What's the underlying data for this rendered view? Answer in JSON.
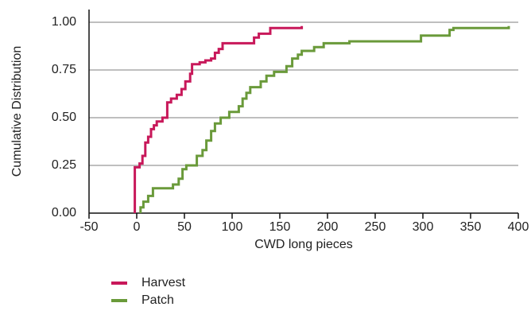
{
  "chart_data": {
    "type": "step",
    "xlabel": "CWD long pieces",
    "ylabel": "Cumulative Distribution",
    "xlim": [
      -50,
      400
    ],
    "xticks": [
      -50,
      0,
      50,
      100,
      150,
      200,
      250,
      300,
      350,
      400
    ],
    "ylim": [
      0,
      1
    ],
    "yticks": [
      {
        "value": 0,
        "label": "0.00"
      },
      {
        "value": 0.25,
        "label": "0.25"
      },
      {
        "value": 0.5,
        "label": "0.50"
      },
      {
        "value": 0.75,
        "label": "0.75"
      },
      {
        "value": 1,
        "label": "1.00"
      }
    ],
    "grid": true,
    "legend": "bottom-left",
    "series": [
      {
        "name": "Harvest",
        "color": "#c8185a",
        "x": [
          -2,
          -2,
          3,
          6,
          9,
          12,
          15,
          18,
          21,
          27,
          32,
          36,
          42,
          47,
          51,
          56,
          58,
          66,
          72,
          78,
          82,
          86,
          90,
          100,
          123,
          128,
          140,
          173
        ],
        "values": [
          0,
          0.24,
          0.26,
          0.3,
          0.37,
          0.4,
          0.44,
          0.46,
          0.48,
          0.5,
          0.58,
          0.6,
          0.62,
          0.65,
          0.69,
          0.73,
          0.78,
          0.79,
          0.8,
          0.81,
          0.84,
          0.86,
          0.89,
          0.89,
          0.92,
          0.94,
          0.97,
          0.98
        ]
      },
      {
        "name": "Patch",
        "color": "#6a9a3a",
        "x": [
          4,
          4,
          7,
          12,
          17,
          38,
          44,
          48,
          52,
          63,
          69,
          73,
          78,
          82,
          88,
          97,
          107,
          111,
          115,
          119,
          130,
          136,
          144,
          157,
          163,
          169,
          173,
          186,
          196,
          223,
          298,
          328,
          332,
          390
        ],
        "values": [
          0,
          0.03,
          0.06,
          0.09,
          0.13,
          0.15,
          0.18,
          0.23,
          0.25,
          0.3,
          0.33,
          0.38,
          0.43,
          0.47,
          0.5,
          0.53,
          0.56,
          0.6,
          0.63,
          0.66,
          0.69,
          0.72,
          0.74,
          0.77,
          0.81,
          0.83,
          0.85,
          0.87,
          0.89,
          0.9,
          0.93,
          0.96,
          0.97,
          0.98
        ]
      }
    ]
  }
}
